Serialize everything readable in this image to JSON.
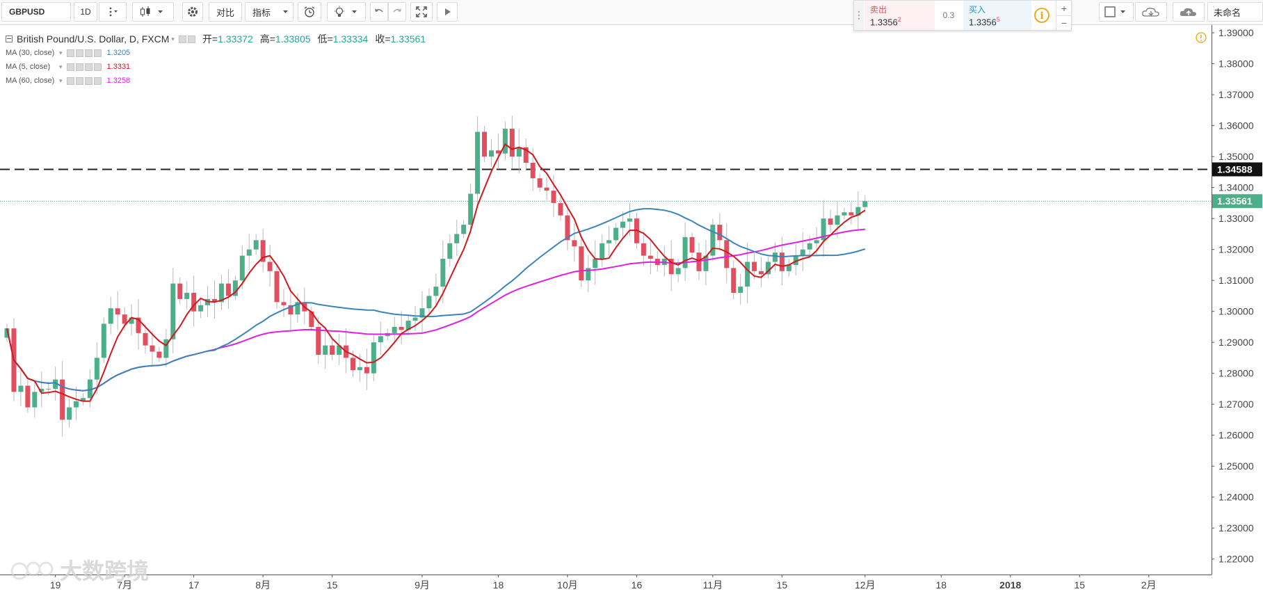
{
  "toolbar": {
    "symbol": "GBPUSD",
    "interval": "1D",
    "compare_label": "对比",
    "indicators_label": "指标",
    "layout_name": "未命名"
  },
  "trade_panel": {
    "sell_label": "卖出",
    "sell_price": "1.3356",
    "sell_sup": "2",
    "spread": "0.3",
    "buy_label": "买入",
    "buy_price": "1.3356",
    "buy_sup": "5",
    "plus": "+",
    "minus": "−"
  },
  "legend": {
    "title": "British Pound/U.S. Dollar, D, FXCM",
    "open_label": "开=",
    "open_value": "1.33372",
    "high_label": "高=",
    "high_value": "1.33805",
    "low_label": "低=",
    "low_value": "1.33334",
    "close_label": "收=",
    "close_value": "1.33561",
    "indicators": [
      {
        "label": "MA (30, close)",
        "value": "1.3205",
        "color": "#3a85b8"
      },
      {
        "label": "MA (5, close)",
        "value": "1.3331",
        "color": "#d0191c"
      },
      {
        "label": "MA (60, close)",
        "value": "1.3258",
        "color": "#e21ee2"
      }
    ]
  },
  "watermark": "大数跨境",
  "colors": {
    "up": "#4caf8a",
    "down": "#e04f5f",
    "ma30": "#3a85b8",
    "ma5": "#d0191c",
    "ma60": "#e21ee2",
    "price_line": "#26a69a",
    "level_line": "#222222"
  },
  "chart_data": {
    "type": "candlestick",
    "title": "British Pound/U.S. Dollar, D, FXCM",
    "ylim": [
      1.215,
      1.3925
    ],
    "y_ticks": [
      "1.39000",
      "1.38000",
      "1.37000",
      "1.36000",
      "1.35000",
      "1.34000",
      "1.33000",
      "1.32000",
      "1.31000",
      "1.30000",
      "1.29000",
      "1.28000",
      "1.27000",
      "1.26000",
      "1.25000",
      "1.24000",
      "1.23000",
      "1.22000"
    ],
    "x_ticks": [
      {
        "label": "19",
        "i": 7
      },
      {
        "label": "7月",
        "i": 17
      },
      {
        "label": "17",
        "i": 27
      },
      {
        "label": "8月",
        "i": 37
      },
      {
        "label": "15",
        "i": 47
      },
      {
        "label": "9月",
        "i": 60
      },
      {
        "label": "18",
        "i": 71
      },
      {
        "label": "10月",
        "i": 81
      },
      {
        "label": "16",
        "i": 91
      },
      {
        "label": "11月",
        "i": 102
      },
      {
        "label": "15",
        "i": 112
      },
      {
        "label": "12月",
        "i": 124
      },
      {
        "label": "18",
        "i": 135
      },
      {
        "label": "2018",
        "i": 145
      },
      {
        "label": "15",
        "i": 155
      },
      {
        "label": "2月",
        "i": 165
      }
    ],
    "horizontal_line": 1.34588,
    "horizontal_line_label": "1.34588",
    "last_price": 1.33561,
    "last_price_label": "1.33561",
    "close": [
      1.2945,
      1.274,
      1.276,
      1.269,
      1.274,
      1.275,
      1.275,
      1.278,
      1.265,
      1.269,
      1.271,
      1.272,
      1.278,
      1.285,
      1.296,
      1.301,
      1.299,
      1.296,
      1.298,
      1.293,
      1.289,
      1.287,
      1.285,
      1.291,
      1.309,
      1.304,
      1.306,
      1.3,
      1.302,
      1.304,
      1.303,
      1.309,
      1.305,
      1.31,
      1.318,
      1.32,
      1.323,
      1.316,
      1.313,
      1.303,
      1.302,
      1.299,
      1.303,
      1.3,
      1.295,
      1.286,
      1.289,
      1.286,
      1.289,
      1.285,
      1.281,
      1.282,
      1.28,
      1.29,
      1.292,
      1.293,
      1.295,
      1.294,
      1.297,
      1.298,
      1.301,
      1.305,
      1.308,
      1.317,
      1.322,
      1.325,
      1.328,
      1.338,
      1.358,
      1.35,
      1.352,
      1.351,
      1.359,
      1.35,
      1.353,
      1.348,
      1.343,
      1.34,
      1.339,
      1.335,
      1.331,
      1.323,
      1.321,
      1.31,
      1.314,
      1.317,
      1.322,
      1.323,
      1.327,
      1.329,
      1.33,
      1.322,
      1.318,
      1.317,
      1.315,
      1.317,
      1.312,
      1.314,
      1.324,
      1.319,
      1.313,
      1.318,
      1.328,
      1.323,
      1.314,
      1.306,
      1.308,
      1.316,
      1.313,
      1.312,
      1.316,
      1.319,
      1.313,
      1.315,
      1.318,
      1.32,
      1.322,
      1.323,
      1.33,
      1.328,
      1.331,
      1.332,
      1.331,
      1.3337,
      1.3356
    ]
  }
}
